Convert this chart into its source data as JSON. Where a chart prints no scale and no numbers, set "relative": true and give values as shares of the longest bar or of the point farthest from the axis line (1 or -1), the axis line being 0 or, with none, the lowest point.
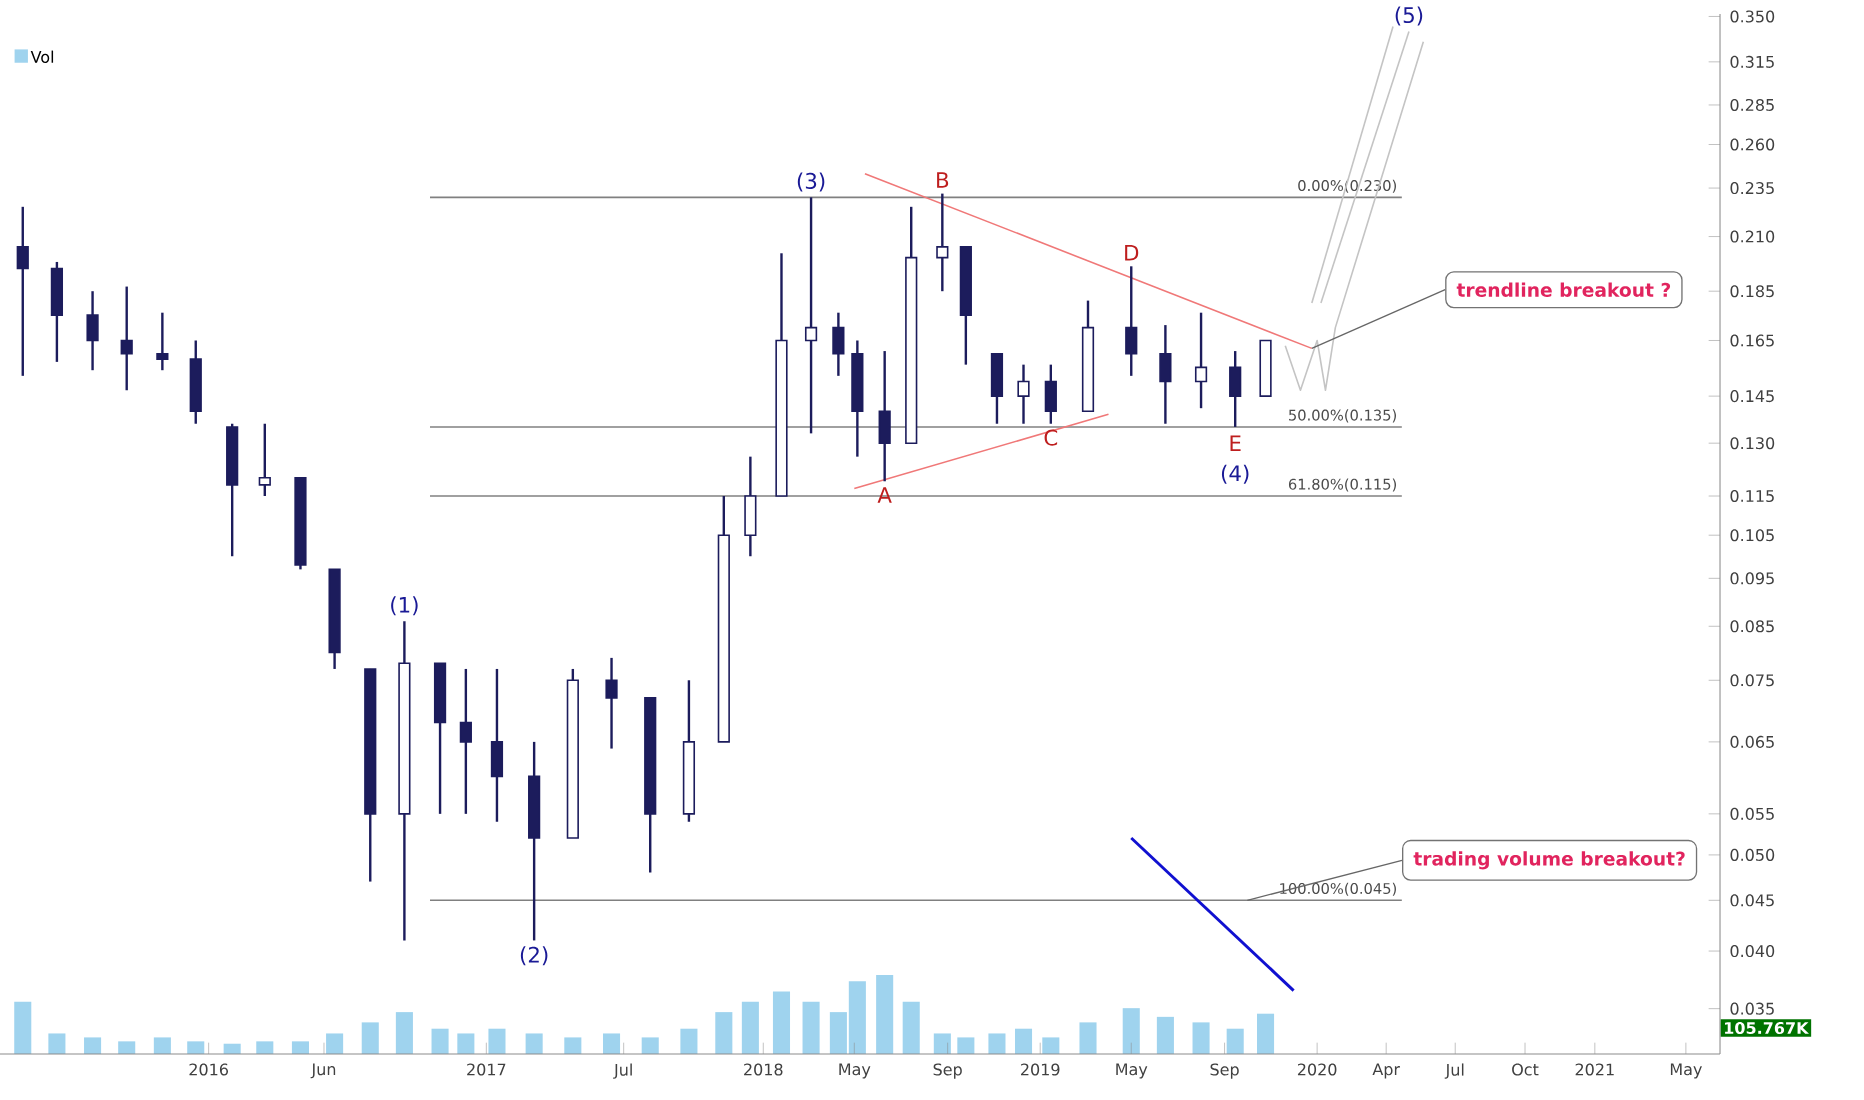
{
  "chart_data": [
    {
      "type": "candlestick",
      "color": "#1c1c5c",
      "x": [
        "2015-05-01",
        "2015-06-15",
        "2015-08-01",
        "2015-09-15",
        "2015-11-01",
        "2015-12-15",
        "2016-02-01",
        "2016-03-15",
        "2016-05-01",
        "2016-06-15",
        "2016-08-01",
        "2016-09-15",
        "2016-11-01",
        "2016-12-05",
        "2017-01-15",
        "2017-03-05",
        "2017-04-25",
        "2017-06-15",
        "2017-08-05",
        "2017-09-25",
        "2017-11-10",
        "2017-12-15",
        "2018-01-25",
        "2018-03-05",
        "2018-04-10",
        "2018-05-05",
        "2018-06-10",
        "2018-07-15",
        "2018-08-25",
        "2018-09-25",
        "2018-11-05",
        "2018-12-10",
        "2019-01-15",
        "2019-03-05",
        "2019-05-01",
        "2019-06-15",
        "2019-08-01",
        "2019-09-15",
        "2019-10-25"
      ],
      "ohlc": [
        [
          0.205,
          0.225,
          0.152,
          0.195
        ],
        [
          0.195,
          0.198,
          0.157,
          0.175
        ],
        [
          0.175,
          0.185,
          0.154,
          0.165
        ],
        [
          0.165,
          0.187,
          0.147,
          0.16
        ],
        [
          0.16,
          0.176,
          0.154,
          0.158
        ],
        [
          0.158,
          0.165,
          0.136,
          0.14
        ],
        [
          0.135,
          0.136,
          0.1,
          0.118
        ],
        [
          0.118,
          0.136,
          0.115,
          0.12
        ],
        [
          0.12,
          0.12,
          0.097,
          0.098
        ],
        [
          0.097,
          0.097,
          0.077,
          0.08
        ],
        [
          0.077,
          0.077,
          0.047,
          0.055
        ],
        [
          0.055,
          0.086,
          0.041,
          0.078
        ],
        [
          0.078,
          0.078,
          0.055,
          0.068
        ],
        [
          0.068,
          0.077,
          0.055,
          0.065
        ],
        [
          0.065,
          0.077,
          0.054,
          0.06
        ],
        [
          0.06,
          0.065,
          0.041,
          0.052
        ],
        [
          0.052,
          0.077,
          0.052,
          0.075
        ],
        [
          0.075,
          0.079,
          0.064,
          0.072
        ],
        [
          0.072,
          0.072,
          0.048,
          0.055
        ],
        [
          0.055,
          0.075,
          0.054,
          0.065
        ],
        [
          0.065,
          0.115,
          0.065,
          0.105
        ],
        [
          0.105,
          0.126,
          0.1,
          0.115
        ],
        [
          0.115,
          0.202,
          0.115,
          0.165
        ],
        [
          0.165,
          0.23,
          0.133,
          0.17
        ],
        [
          0.17,
          0.176,
          0.152,
          0.16
        ],
        [
          0.16,
          0.165,
          0.126,
          0.14
        ],
        [
          0.14,
          0.161,
          0.119,
          0.13
        ],
        [
          0.13,
          0.225,
          0.13,
          0.2
        ],
        [
          0.2,
          0.232,
          0.185,
          0.205
        ],
        [
          0.205,
          0.205,
          0.156,
          0.175
        ],
        [
          0.16,
          0.16,
          0.136,
          0.145
        ],
        [
          0.145,
          0.156,
          0.136,
          0.15
        ],
        [
          0.15,
          0.156,
          0.136,
          0.14
        ],
        [
          0.14,
          0.181,
          0.14,
          0.17
        ],
        [
          0.17,
          0.196,
          0.152,
          0.16
        ],
        [
          0.16,
          0.171,
          0.136,
          0.15
        ],
        [
          0.15,
          0.176,
          0.141,
          0.155
        ],
        [
          0.155,
          0.161,
          0.135,
          0.145
        ],
        [
          0.145,
          0.165,
          0.145,
          0.165
        ]
      ],
      "series": [
        {
          "type": "line",
          "color": "#f07878",
          "x": [
            "2018-05-15",
            "2019-12-25"
          ],
          "values": [
            0.243,
            0.162
          ]
        },
        {
          "type": "line",
          "color": "#f07878",
          "x": [
            "2018-05-01",
            "2019-04-01"
          ],
          "values": [
            0.117,
            0.139
          ]
        },
        {
          "type": "line",
          "color": "#1010d0",
          "x": [
            "2019-05-01",
            "2019-12-01"
          ],
          "values": [
            0.052,
            0.0365
          ]
        },
        {
          "type": "line",
          "color": "#c4c4c4",
          "x": [
            "2019-11-20",
            "2019-12-10",
            "2020-01-01",
            "2020-01-12",
            "2020-01-25",
            "2020-05-20"
          ],
          "values": [
            0.163,
            0.147,
            0.165,
            0.147,
            0.17,
            0.33
          ]
        },
        {
          "type": "line",
          "color": "#c4c4c4",
          "x": [
            "2019-12-25",
            "2020-04-10"
          ],
          "values": [
            0.18,
            0.342
          ]
        },
        {
          "type": "line",
          "color": "#c4c4c4",
          "x": [
            "2020-01-06",
            "2020-05-01"
          ],
          "values": [
            0.18,
            0.338
          ]
        }
      ],
      "xlim": [
        "2015-04-01",
        "2021-06-15"
      ],
      "xticks": [
        "2016",
        {
          "value": "2016-06",
          "label": "Jun"
        },
        "2017",
        {
          "value": "2017-07",
          "label": "Jul"
        },
        "2018",
        {
          "value": "2018-05",
          "label": "May"
        },
        {
          "value": "2018-09",
          "label": "Sep"
        },
        "2019",
        {
          "value": "2019-05",
          "label": "May"
        },
        {
          "value": "2019-09",
          "label": "Sep"
        },
        "2020",
        {
          "value": "2020-04",
          "label": "Apr"
        },
        {
          "value": "2020-07",
          "label": "Jul"
        },
        {
          "value": "2020-10",
          "label": "Oct"
        },
        "2021",
        {
          "value": "2021-05",
          "label": "May"
        }
      ],
      "ylim": [
        0.0315,
        0.352
      ],
      "log": true,
      "yticks": [
        0.035,
        {
          "value": 0.04,
          "label": "0.040"
        },
        0.045,
        {
          "value": 0.05,
          "label": "0.050"
        },
        0.055,
        0.065,
        0.075,
        0.085,
        0.095,
        0.105,
        0.115,
        {
          "value": 0.13,
          "label": "0.130"
        },
        0.145,
        0.165,
        0.185,
        {
          "value": 0.21,
          "label": "0.210"
        },
        0.235,
        {
          "value": 0.26,
          "label": "0.260"
        },
        0.285,
        0.315,
        {
          "value": 0.35,
          "label": "0.350"
        }
      ],
      "ref_lines": [
        {
          "axis": "y",
          "value": 0.23,
          "label": "0.00%(0.230)",
          "color": "#808080"
        },
        {
          "axis": "y",
          "value": 0.135,
          "label": "50.00%(0.135)",
          "color": "#808080"
        },
        {
          "axis": "y",
          "value": 0.115,
          "label": "61.80%(0.115)",
          "color": "#808080"
        },
        {
          "axis": "y",
          "value": 0.045,
          "label": "100.00%(0.045)",
          "color": "#808080"
        }
      ],
      "annotations": [
        {
          "text": "(1)",
          "x": "2016-09-15",
          "y": 0.086
        },
        {
          "text": "(2)",
          "x": "2017-03-05",
          "y": 0.041
        },
        {
          "text": "(3)",
          "x": "2018-03-05",
          "y": 0.23
        },
        {
          "text": "(4)",
          "x": "2019-09-15",
          "y": 0.135
        },
        {
          "text": "(5)",
          "x": "2020-05-01",
          "y": 0.338
        },
        {
          "text": "A",
          "x": "2018-06-10",
          "y": 0.119
        },
        {
          "text": "B",
          "x": "2018-08-25",
          "y": 0.232
        },
        {
          "text": "C",
          "x": "2019-01-15",
          "y": 0.136
        },
        {
          "text": "D",
          "x": "2019-05-01",
          "y": 0.196
        },
        {
          "text": "E",
          "x": "2019-09-15",
          "y": 0.135
        },
        {
          "text": "trendline breakout ?",
          "x": "2019-12-25",
          "y": 0.162
        },
        {
          "text": "trading volume breakout?",
          "x": "2019-10-01",
          "y": 0.045
        }
      ]
    },
    {
      "type": "bar",
      "relative": true,
      "tick_labels": false,
      "x": [
        "2015-05-01",
        "2015-06-15",
        "2015-08-01",
        "2015-09-15",
        "2015-11-01",
        "2015-12-15",
        "2016-02-01",
        "2016-03-15",
        "2016-05-01",
        "2016-06-15",
        "2016-08-01",
        "2016-09-15",
        "2016-11-01",
        "2016-12-05",
        "2017-01-15",
        "2017-03-05",
        "2017-04-25",
        "2017-06-15",
        "2017-08-05",
        "2017-09-25",
        "2017-11-10",
        "2017-12-15",
        "2018-01-25",
        "2018-03-05",
        "2018-04-10",
        "2018-05-05",
        "2018-06-10",
        "2018-07-15",
        "2018-08-25",
        "2018-09-25",
        "2018-11-05",
        "2018-12-10",
        "2019-01-15",
        "2019-03-05",
        "2019-05-01",
        "2019-06-15",
        "2019-08-01",
        "2019-09-15",
        "2019-10-25"
      ],
      "xlim": [
        "2015-04-01",
        "2021-06-15"
      ],
      "series": [
        {
          "name": "Vol",
          "color": "#9fd3ee",
          "values": [
            0.66,
            0.26,
            0.21,
            0.16,
            0.21,
            0.16,
            0.13,
            0.16,
            0.16,
            0.26,
            0.4,
            0.53,
            0.32,
            0.26,
            0.32,
            0.26,
            0.21,
            0.26,
            0.21,
            0.32,
            0.53,
            0.66,
            0.79,
            0.66,
            0.53,
            0.92,
            1,
            0.66,
            0.26,
            0.21,
            0.26,
            0.32,
            0.21,
            0.4,
            0.58,
            0.47,
            0.4,
            0.32,
            0.51
          ]
        }
      ],
      "annotations": [
        "105.767K"
      ]
    }
  ]
}
